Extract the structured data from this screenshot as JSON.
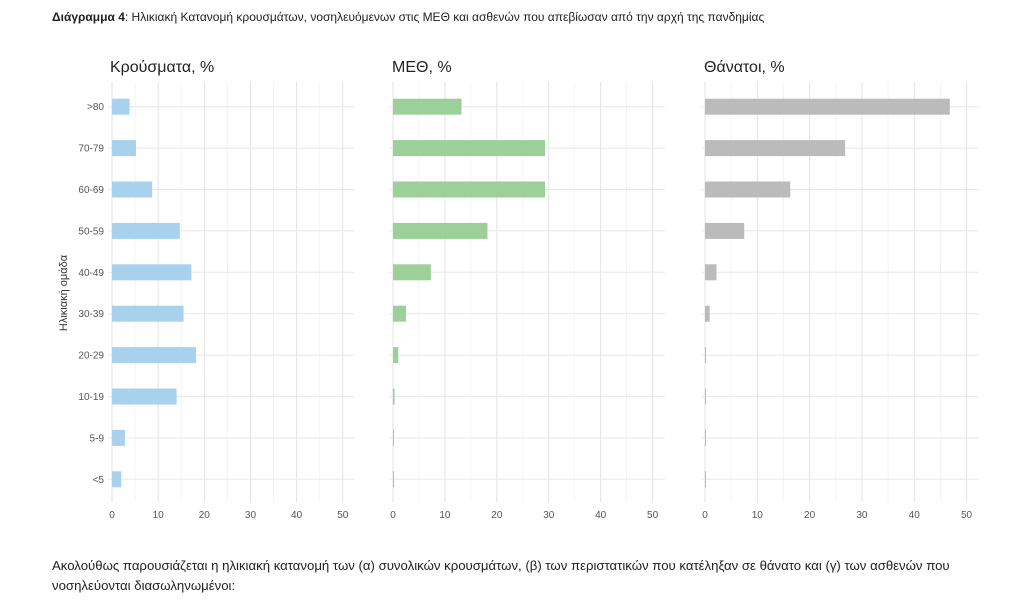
{
  "caption": {
    "label": "Διάγραμμα 4",
    "text": ": Ηλικιακή Κατανομή κρουσμάτων, νοσηλευόμενων στις ΜΕΘ και ασθενών που απεβίωσαν από την αρχή της πανδημίας"
  },
  "chart_data": {
    "type": "bar",
    "orientation": "horizontal",
    "ylabel": "Ηλικιακή ομάδα",
    "categories": [
      ">80",
      "70-79",
      "60-69",
      "50-59",
      "40-49",
      "30-39",
      "20-29",
      "10-19",
      "5-9",
      "<5"
    ],
    "xlim": [
      0,
      52
    ],
    "xticks": [
      0,
      10,
      20,
      30,
      40,
      50
    ],
    "grid": true,
    "panels": [
      {
        "title": "Κρούσματα, %",
        "color": "#a8d1ee",
        "values": [
          3.8,
          5.2,
          8.7,
          14.7,
          17.2,
          15.5,
          18.2,
          14.0,
          2.8,
          2.0
        ]
      },
      {
        "title": "ΜΕΘ, %",
        "color": "#9ccf9a",
        "values": [
          13.2,
          29.3,
          29.3,
          18.2,
          7.3,
          2.5,
          1.0,
          0.3,
          0.2,
          0.2
        ]
      },
      {
        "title": "Θάνατοι, %",
        "color": "#bbbbbb",
        "values": [
          46.8,
          26.8,
          16.3,
          7.5,
          2.2,
          0.9,
          0.2,
          0.1,
          0.1,
          0.1
        ]
      }
    ]
  },
  "body": {
    "text": "Ακολούθως παρουσιάζεται η ηλικιακή κατανομή των (α) συνολικών κρουσμάτων, (β) των περιστατικών που κατέληξαν σε θάνατο και (γ) των ασθενών που νοσηλεύονται διασωληνωμένοι:"
  }
}
